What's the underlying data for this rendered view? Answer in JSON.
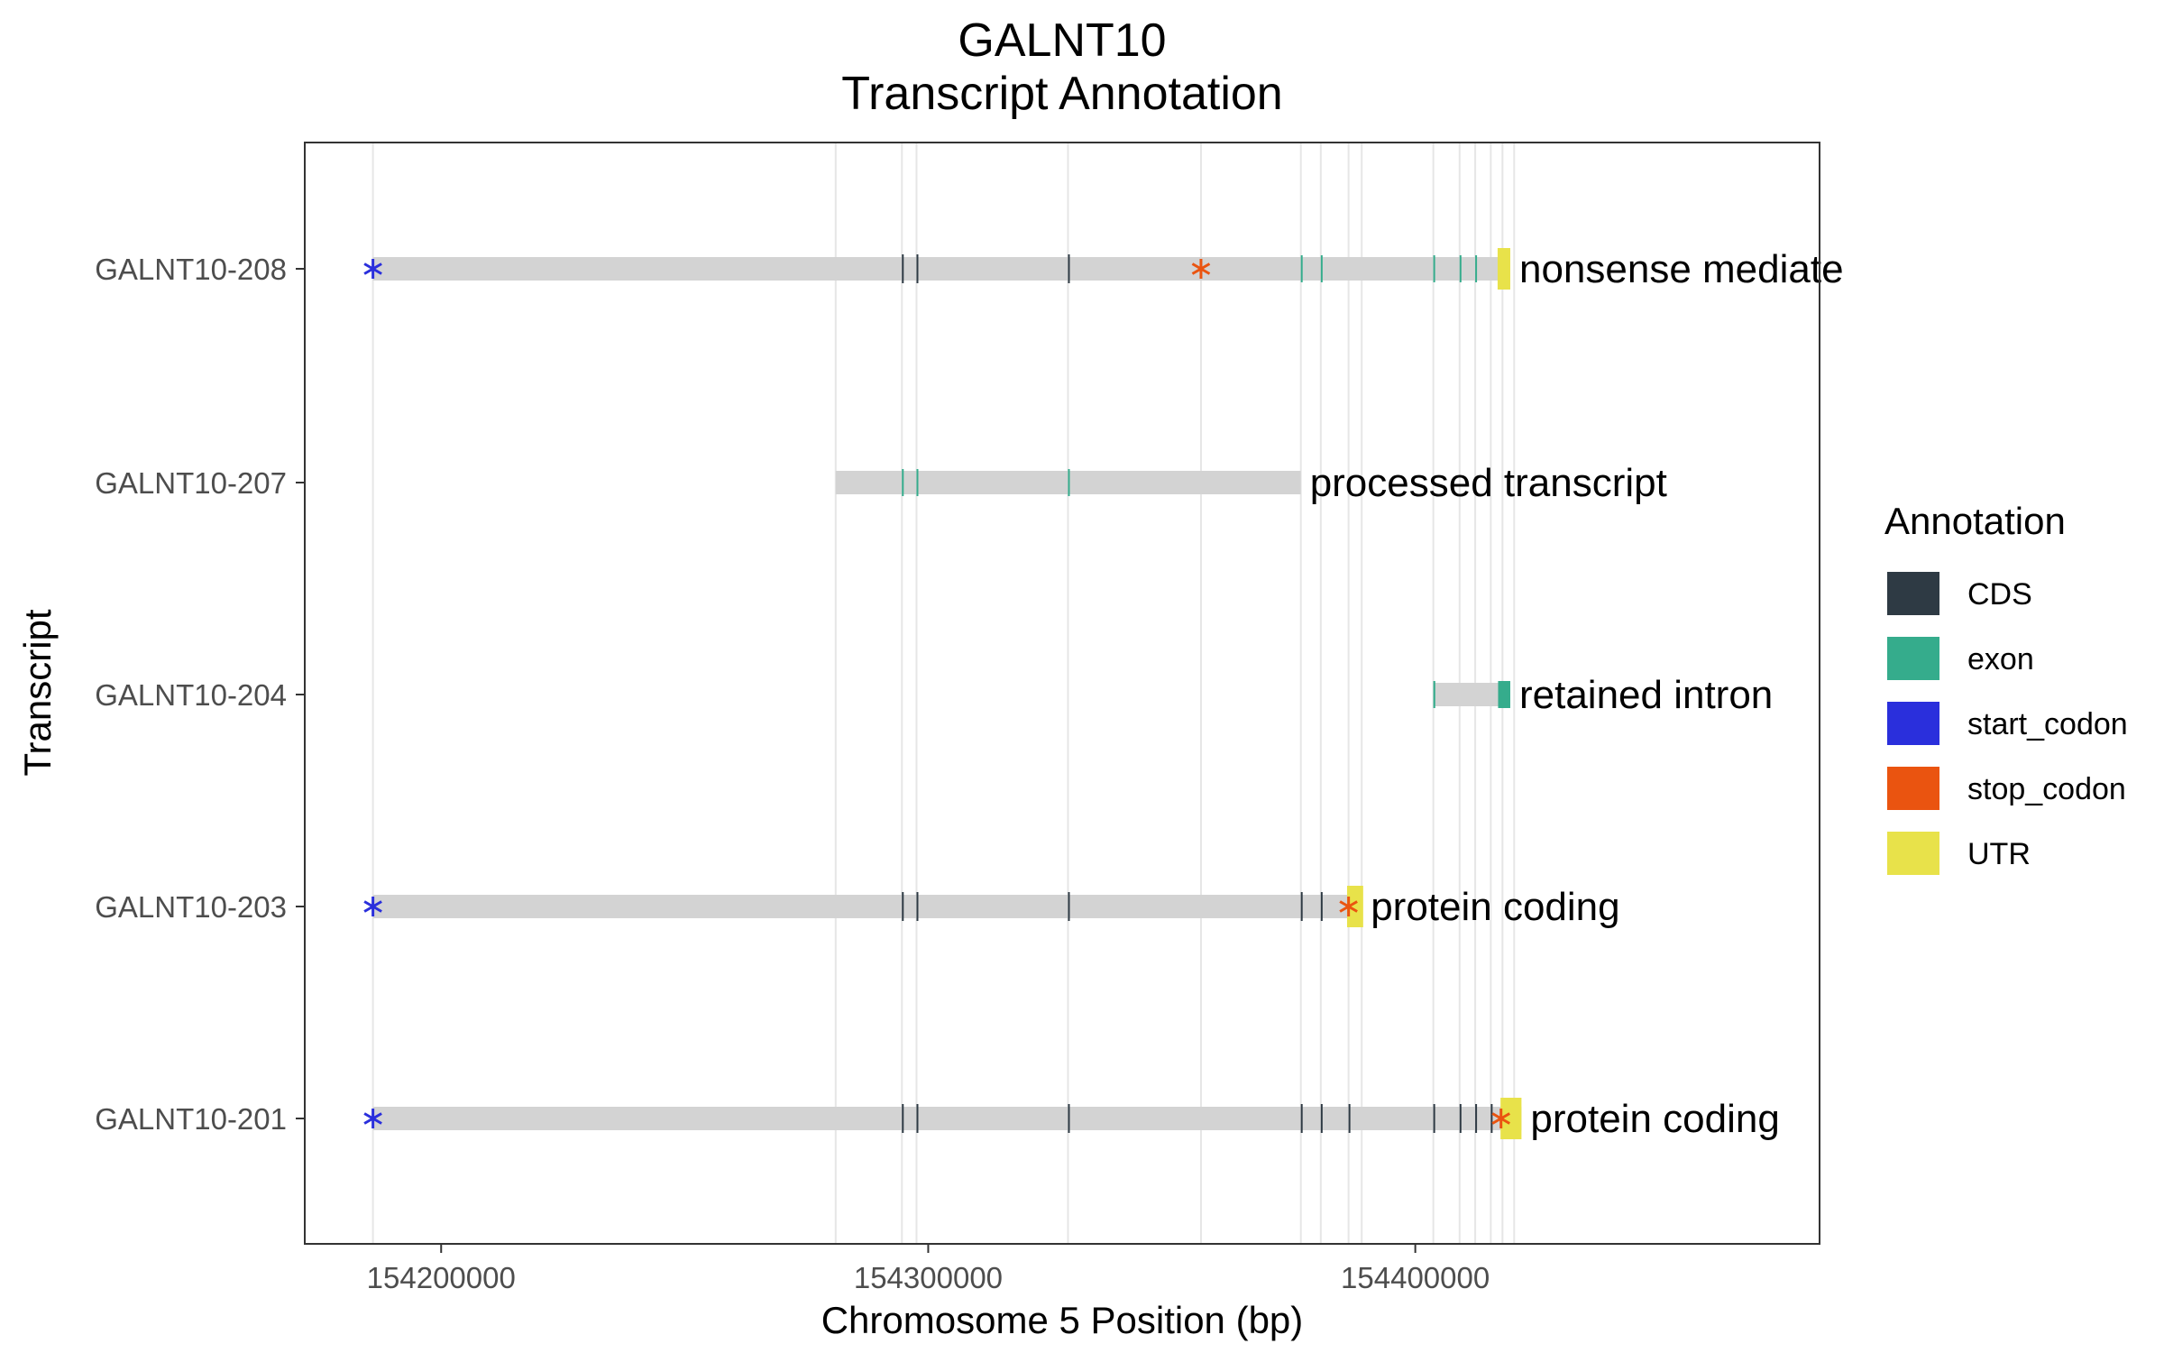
{
  "title": "GALNT10",
  "subtitle": "Transcript Annotation",
  "chart_data": {
    "type": "gene-structure",
    "title": "GALNT10",
    "subtitle": "Transcript Annotation",
    "xlabel": "Chromosome 5 Position (bp)",
    "ylabel": "Transcript",
    "xlim": [
      154172000,
      154483000
    ],
    "x_ticks": [
      154200000,
      154300000,
      154400000
    ],
    "x_tick_labels": [
      "154200000",
      "154300000",
      "154400000"
    ],
    "grid": true,
    "guide_positions": [
      154186000,
      154281000,
      154294600,
      154297600,
      154328700,
      154356000,
      154376500,
      154380600,
      154386300,
      154389000,
      154403700,
      154409100,
      154412300,
      154415500,
      154417900,
      154420300
    ],
    "transcripts": [
      {
        "name": "GALNT10-208",
        "biotype": "nonsense mediate",
        "span": [
          154186000,
          154419500
        ],
        "cds": [
          [
            154294600,
            154294900
          ],
          [
            154297600,
            154297900
          ],
          [
            154328700,
            154329000
          ]
        ],
        "exons": [
          [
            154376500,
            154376800
          ],
          [
            154380600,
            154380900
          ],
          [
            154403700,
            154404000
          ],
          [
            154409100,
            154409400
          ],
          [
            154412300,
            154412600
          ]
        ],
        "utr": [
          [
            154416900,
            154419500
          ]
        ],
        "start_codon": 154186000,
        "stop_codon": 154356000
      },
      {
        "name": "GALNT10-207",
        "biotype": "processed transcript",
        "span": [
          154281000,
          154376500
        ],
        "cds": [],
        "exons": [
          [
            154294600,
            154294900
          ],
          [
            154297600,
            154297900
          ],
          [
            154328700,
            154329000
          ]
        ],
        "utr": [],
        "start_codon": null,
        "stop_codon": null
      },
      {
        "name": "GALNT10-204",
        "biotype": "retained intron",
        "span": [
          154403700,
          154419500
        ],
        "cds": [],
        "exons": [
          [
            154403700,
            154404100
          ],
          [
            154417000,
            154419500
          ]
        ],
        "utr": [],
        "start_codon": null,
        "stop_codon": null
      },
      {
        "name": "GALNT10-203",
        "biotype": "protein coding",
        "span": [
          154186000,
          154389000
        ],
        "cds": [
          [
            154294600,
            154294900
          ],
          [
            154297600,
            154297900
          ],
          [
            154328700,
            154329000
          ],
          [
            154376500,
            154376800
          ],
          [
            154380600,
            154380900
          ]
        ],
        "exons": [],
        "utr": [
          [
            154386000,
            154389300
          ]
        ],
        "start_codon": 154186000,
        "stop_codon": 154386300
      },
      {
        "name": "GALNT10-201",
        "biotype": "protein coding",
        "span": [
          154186000,
          154421800
        ],
        "cds": [
          [
            154294600,
            154294900
          ],
          [
            154297600,
            154297900
          ],
          [
            154328700,
            154329000
          ],
          [
            154376500,
            154376800
          ],
          [
            154380600,
            154380900
          ],
          [
            154386300,
            154386600
          ],
          [
            154403700,
            154404000
          ],
          [
            154409100,
            154409400
          ],
          [
            154412300,
            154412600
          ],
          [
            154415500,
            154415800
          ]
        ],
        "exons": [],
        "utr": [
          [
            154417500,
            154421800
          ]
        ],
        "start_codon": 154186000,
        "stop_codon": 154417600
      }
    ],
    "legend": {
      "title": "Annotation",
      "placement": "right",
      "items": [
        {
          "label": "CDS",
          "color": "#2e3a44"
        },
        {
          "label": "exon",
          "color": "#35ac8c"
        },
        {
          "label": "start_codon",
          "color": "#2a2fdc"
        },
        {
          "label": "stop_codon",
          "color": "#ea5410"
        },
        {
          "label": "UTR",
          "color": "#e8e24a"
        }
      ]
    },
    "colors": {
      "backbone": "#d3d3d3",
      "guide_line": "#e6e6e6",
      "panel_border": "#333333"
    }
  }
}
